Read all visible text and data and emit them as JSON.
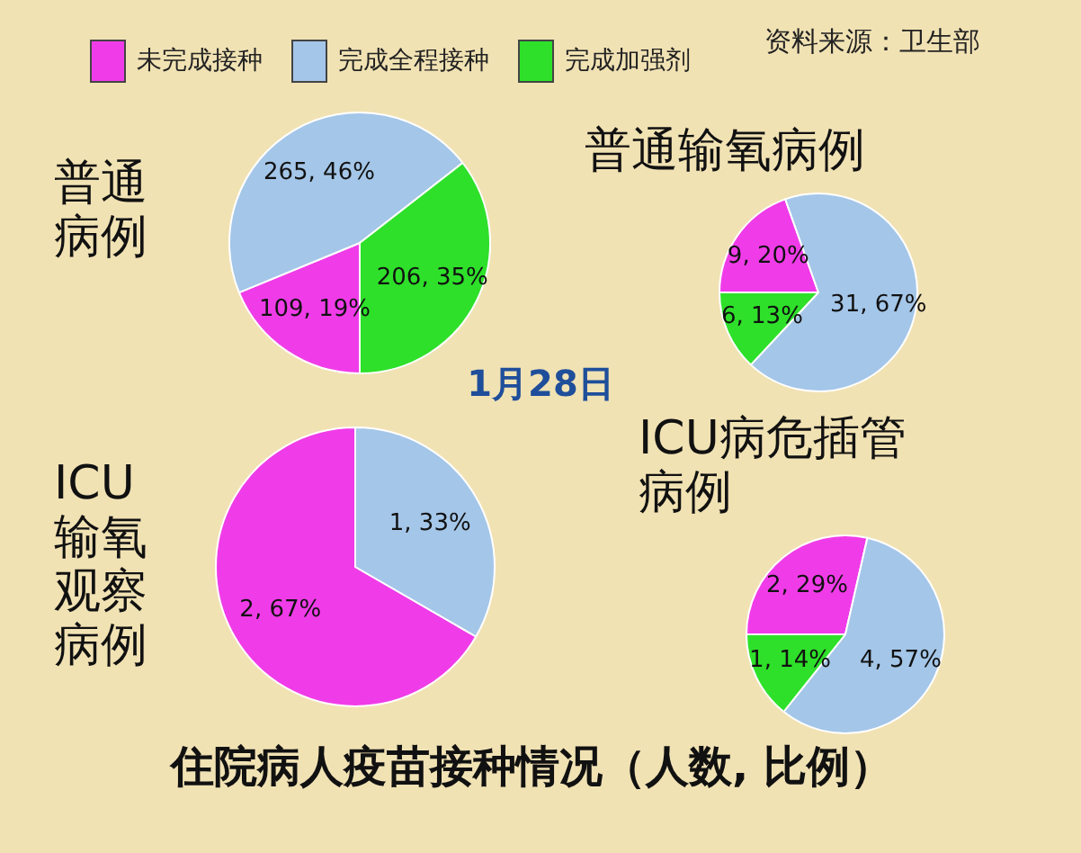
{
  "chart_data": [
    {
      "type": "pie",
      "title": "普通病例",
      "categories": [
        "未完成接种",
        "完成全程接种",
        "完成加强剂"
      ],
      "values": [
        109,
        265,
        206
      ],
      "colors": [
        "#f03ce8",
        "#a4c6e8",
        "#2ee02a"
      ],
      "value_labels": [
        "109, 19%",
        "265, 46%",
        "206, 35%"
      ],
      "legend": "top"
    },
    {
      "type": "pie",
      "title": "普通输氧病例",
      "categories": [
        null,
        null,
        null
      ],
      "values": [
        9,
        31,
        6
      ],
      "colors": [
        "#f03ce8",
        "#a4c6e8",
        "#2ee02a"
      ],
      "value_labels": [
        "9, 20%",
        "31, 67%",
        "6, 13%"
      ]
    },
    {
      "type": "pie",
      "title": "ICU输氧观察病例",
      "categories": [
        null,
        null
      ],
      "values": [
        2,
        1
      ],
      "colors": [
        "#f03ce8",
        "#a4c6e8"
      ],
      "value_labels": [
        "2, 67%",
        "1, 33%"
      ]
    },
    {
      "type": "pie",
      "title": "ICU病危插管病例",
      "categories": [
        null,
        null,
        null
      ],
      "values": [
        2,
        4,
        1
      ],
      "colors": [
        "#f03ce8",
        "#a4c6e8",
        "#2ee02a"
      ],
      "value_labels": [
        "2, 29%",
        "4, 57%",
        "1, 14%"
      ]
    },
    {
      "type": "other",
      "title": "住院病人疫苗接种情况（人数, 比例）",
      "subtitle": "1月28日",
      "annotations": [
        "资料来源：卫生部"
      ]
    }
  ]
}
